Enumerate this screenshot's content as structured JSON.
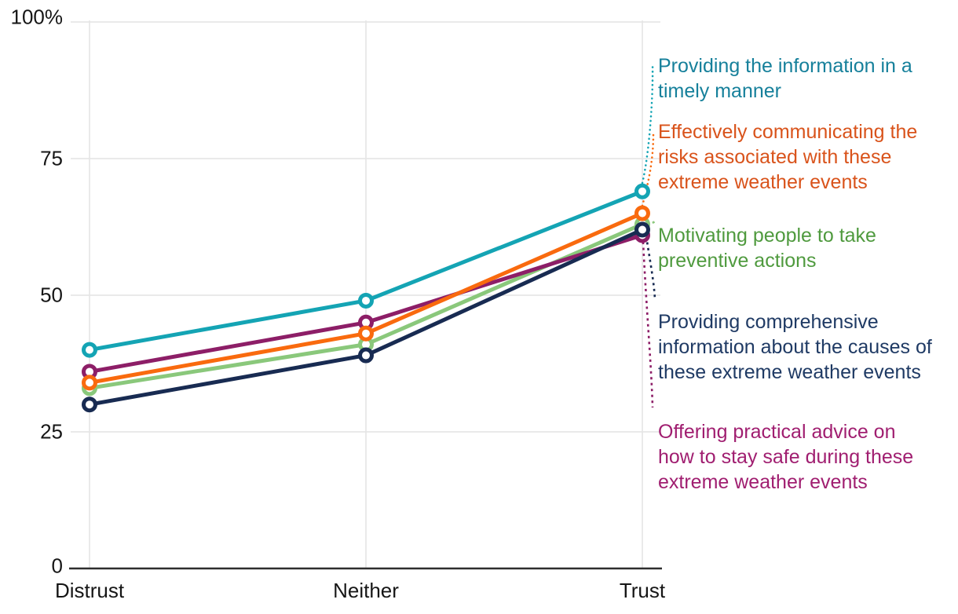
{
  "chart_data": {
    "type": "line",
    "title": "",
    "xlabel": "",
    "ylabel": "",
    "x_categories": [
      "Distrust",
      "Neither",
      "Trust"
    ],
    "y_ticks": [
      "100%",
      "75",
      "50",
      "25",
      "0"
    ],
    "ylim": [
      0,
      100
    ],
    "grid": "both",
    "legend_position": "right-labels",
    "axis_color": "#2e2e2e",
    "grid_color": "#e4e4e4",
    "tick_text_color": "#161616",
    "series": [
      {
        "name": "timely-information",
        "label": "Providing the information in a timely manner",
        "label_lines": [
          "Providing the information in a",
          "timely manner"
        ],
        "line_color": "#14a4b4",
        "text_color": "#16809b",
        "values": [
          40,
          49,
          69
        ]
      },
      {
        "name": "communicating-risks",
        "label": "Effectively communicating the risks associated with these extreme weather events",
        "label_lines": [
          "Effectively communicating the",
          "risks associated with these",
          "extreme weather events"
        ],
        "line_color": "#f96a0e",
        "text_color": "#d9531b",
        "values": [
          34,
          43,
          65
        ]
      },
      {
        "name": "motivating-preventive-actions",
        "label": "Motivating people to take preventive actions",
        "label_lines": [
          "Motivating people to take",
          "preventive actions"
        ],
        "line_color": "#8ac87b",
        "text_color": "#4f9a3e",
        "values": [
          33,
          41,
          63
        ]
      },
      {
        "name": "comprehensive-causes-information",
        "label": "Providing comprehensive information about the causes of these extreme weather events",
        "label_lines": [
          "Providing comprehensive",
          "information about the causes of",
          "these extreme weather events"
        ],
        "line_color": "#182b52",
        "text_color": "#1f3a64",
        "values": [
          30,
          39,
          62
        ]
      },
      {
        "name": "practical-safety-advice",
        "label": "Offering practical advice on how to stay safe during these extreme weather events",
        "label_lines": [
          "Offering practical advice on",
          "how to stay safe during these",
          "extreme weather events"
        ],
        "line_color": "#8d1e67",
        "text_color": "#a01e70",
        "values": [
          36,
          45,
          61
        ]
      }
    ]
  }
}
